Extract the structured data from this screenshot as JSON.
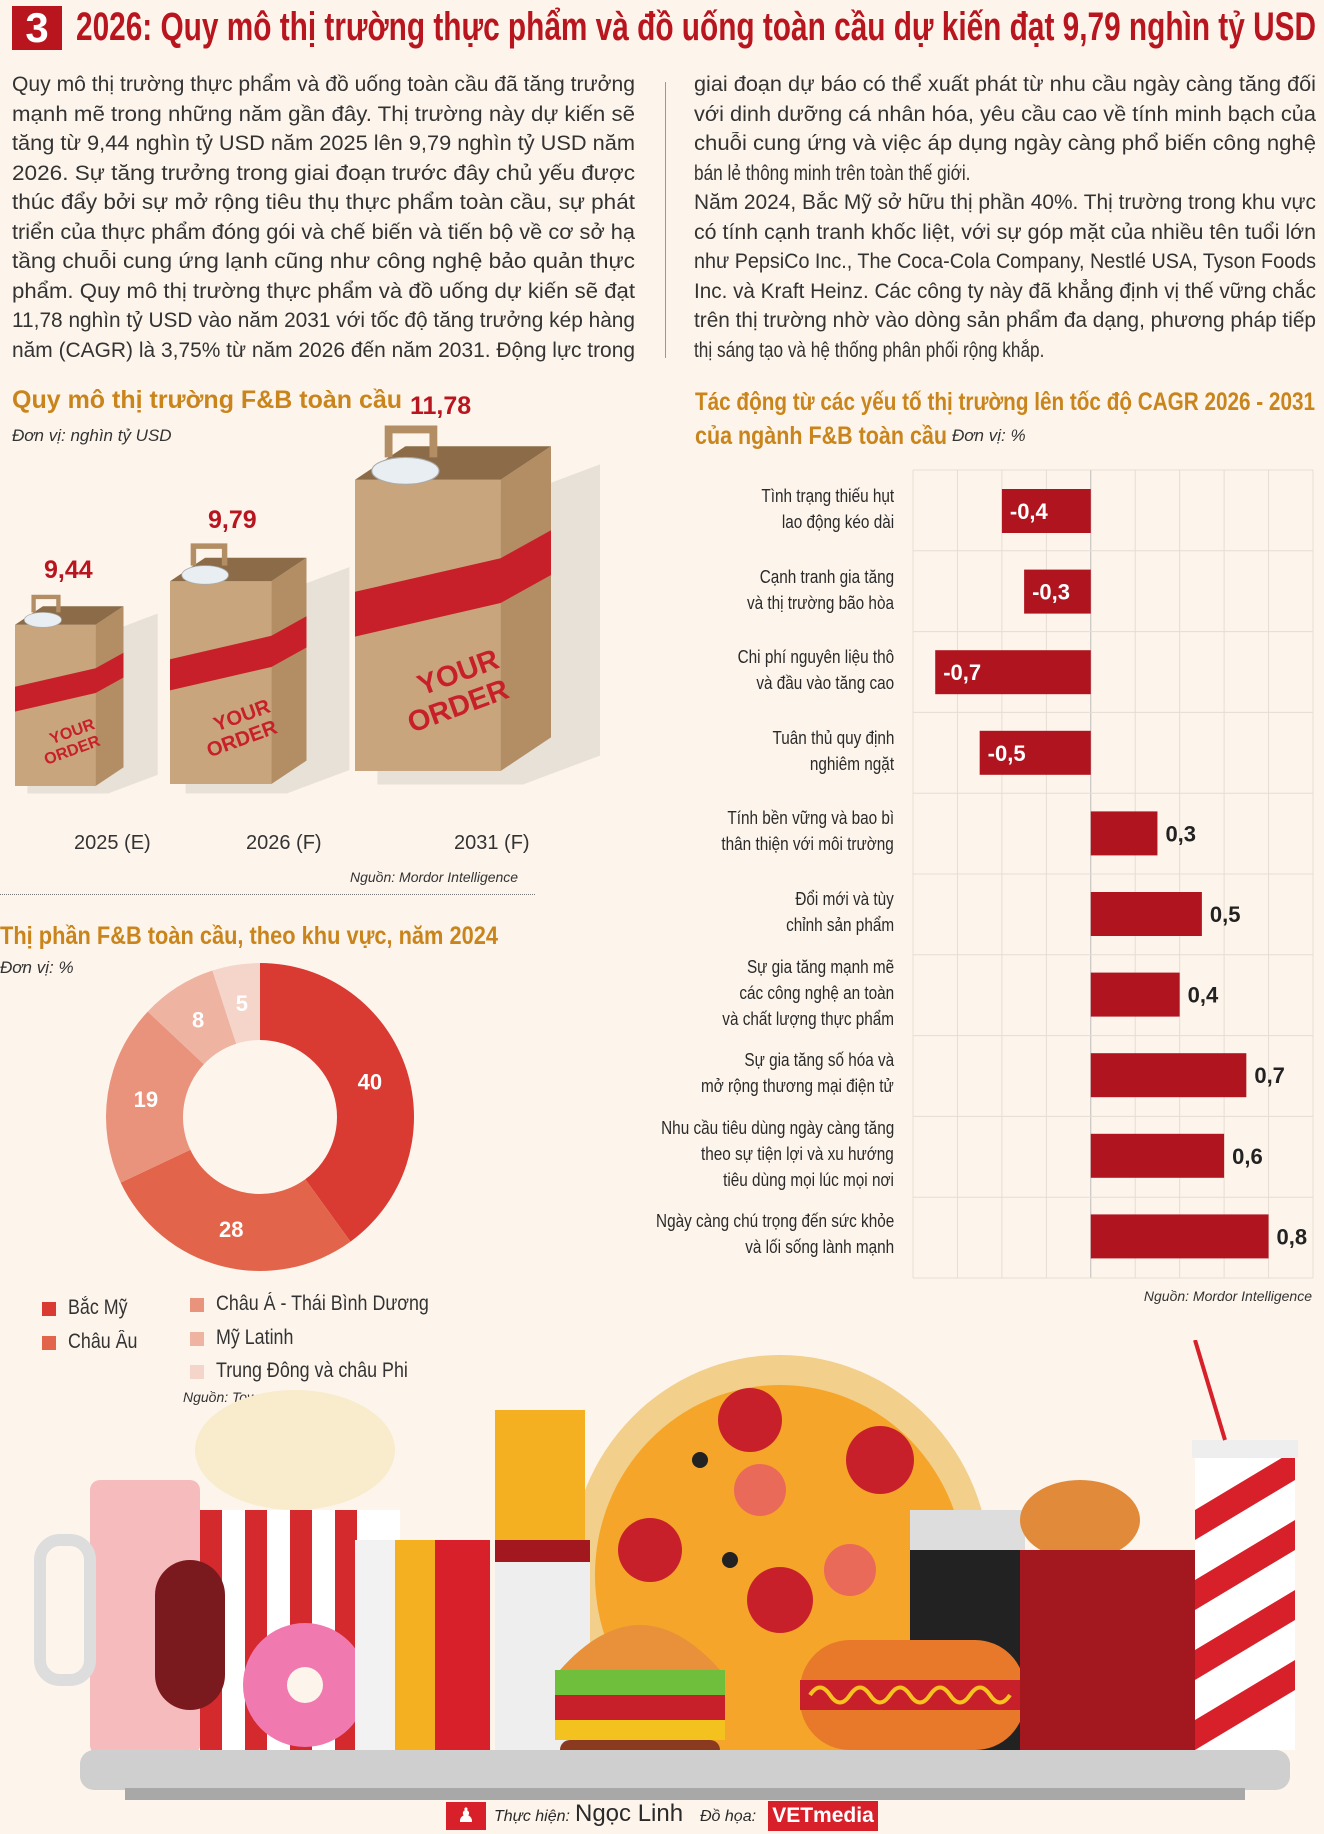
{
  "header": {
    "number": "3",
    "title": "2026: Quy mô thị trường thực phẩm và đồ uống toàn cầu dự kiến đạt 9,79 nghìn tỷ USD"
  },
  "intro": {
    "left_lines": [
      "Quy mô thị trường thực phẩm và đồ uống toàn cầu đã tăng trưởng",
      "mạnh mẽ trong những năm gần đây. Thị trường này dự kiến sẽ",
      "tăng từ 9,44 nghìn tỷ USD năm 2025 lên 9,79 nghìn tỷ USD năm",
      "2026. Sự tăng trưởng trong giai đoạn trước đây chủ yếu được",
      "thúc đẩy bởi sự mở rộng tiêu thụ thực phẩm toàn cầu, sự phát",
      "triển của thực phẩm đóng gói và chế biến và tiến bộ về cơ sở hạ",
      "tầng chuỗi cung ứng lạnh cũng như công nghệ bảo quản thực",
      "phẩm. Quy mô thị trường thực phẩm và đồ uống dự kiến sẽ đạt",
      "11,78 nghìn tỷ USD vào năm 2031 với tốc độ tăng trưởng kép hàng",
      "năm (CAGR) là 3,75% từ năm 2026 đến năm 2031. Động lực trong"
    ],
    "right_lines": [
      "giai đoạn dự báo có thể xuất phát từ nhu cầu ngày càng tăng đối",
      "với dinh dưỡng cá nhân hóa, yêu cầu cao về tính minh bạch của",
      "chuỗi cung ứng và việc áp dụng ngày càng phổ biến công nghệ",
      "bán lẻ thông minh trên toàn thế giới.",
      "Năm 2024, Bắc Mỹ sở hữu thị phần 40%. Thị trường trong khu vực",
      "có tính cạnh tranh khốc liệt, với sự góp mặt của nhiều tên tuổi lớn",
      "như PepsiCo Inc., The Coca-Cola Company, Nestlé USA, Tyson Foods",
      "Inc. và Kraft Heinz. Các công ty này đã khẳng định vị thế vững chắc",
      "trên thị trường nhờ vào dòng sản phẩm đa dạng, phương pháp tiếp",
      "thị sáng tạo và hệ thống phân phối rộng khắp."
    ]
  },
  "chart_data": [
    {
      "type": "bar",
      "title": "Quy mô thị trường F&B toàn cầu",
      "unit": "Đơn vị: nghìn tỷ USD",
      "categories": [
        "2025 (E)",
        "2026 (F)",
        "2031 (F)"
      ],
      "labels": [
        "9,44",
        "9,79",
        "11,78"
      ],
      "values": [
        9.44,
        9.79,
        11.78
      ],
      "bag_text": "YOUR ORDER",
      "source": "Nguồn: Mordor Intelligence",
      "colors": {
        "value": "#b8151f",
        "bag": "#c8a57c",
        "band": "#c8202a"
      }
    },
    {
      "type": "pie",
      "title": "Thị phần F&B toàn cầu, theo khu vực, năm 2024",
      "unit": "Đơn vị: %",
      "slices": [
        {
          "name": "Bắc Mỹ",
          "value": 40,
          "color": "#d93a32"
        },
        {
          "name": "Châu Âu",
          "value": 28,
          "color": "#e2654b"
        },
        {
          "name": "Châu Á - Thái Bình Dương",
          "value": 19,
          "color": "#e9937c"
        },
        {
          "name": "Mỹ Latinh",
          "value": 8,
          "color": "#efb3a2"
        },
        {
          "name": "Trung Đông và châu Phi",
          "value": 5,
          "color": "#f5d5ca"
        }
      ],
      "source": "Nguồn: Towards FnB"
    },
    {
      "type": "bar",
      "orientation": "horizontal",
      "title_lines": [
        "Tác động từ các yếu tố thị trường lên tốc độ CAGR 2026 - 2031",
        "của ngành F&B toàn cầu"
      ],
      "unit": "Đơn vị: %",
      "xlim": [
        -0.8,
        1.0
      ],
      "grid": true,
      "bar_color": "#b0151f",
      "categories": [
        [
          "Tình trạng thiếu hụt",
          "lao động kéo dài"
        ],
        [
          "Cạnh tranh gia tăng",
          "và thị trường bão hòa"
        ],
        [
          "Chi phí nguyên liệu thô",
          "và đầu vào tăng cao"
        ],
        [
          "Tuân thủ quy định",
          "nghiêm ngặt"
        ],
        [
          "Tính bền vững và bao bì",
          "thân thiện với môi trường"
        ],
        [
          "Đổi mới và tùy",
          "chỉnh sản phẩm"
        ],
        [
          "Sự gia tăng mạnh mẽ",
          "các công nghệ an toàn",
          "và chất lượng thực phẩm"
        ],
        [
          "Sự gia tăng số hóa và",
          "mở rộng thương mại điện tử"
        ],
        [
          "Nhu cầu tiêu dùng ngày càng tăng",
          "theo sự tiện lợi và xu hướng",
          "tiêu dùng mọi lúc mọi nơi"
        ],
        [
          "Ngày càng chú trọng đến sức khỏe",
          "và lối sống lành mạnh"
        ]
      ],
      "values": [
        -0.4,
        -0.3,
        -0.7,
        -0.5,
        0.3,
        0.5,
        0.4,
        0.7,
        0.6,
        0.8
      ],
      "labels": [
        "-0,4",
        "-0,3",
        "-0,7",
        "-0,5",
        "0,3",
        "0,5",
        "0,4",
        "0,7",
        "0,6",
        "0,8"
      ],
      "source": "Nguồn: Mordor Intelligence"
    }
  ],
  "footer": {
    "made_by_label": "Thực hiện:",
    "author": "Ngọc Linh",
    "graphics_label": "Đồ họa:",
    "brand": "VETmedia"
  },
  "colors": {
    "accent": "#b8151f",
    "title_gold": "#c9851c",
    "background": "#fdf5ec"
  }
}
